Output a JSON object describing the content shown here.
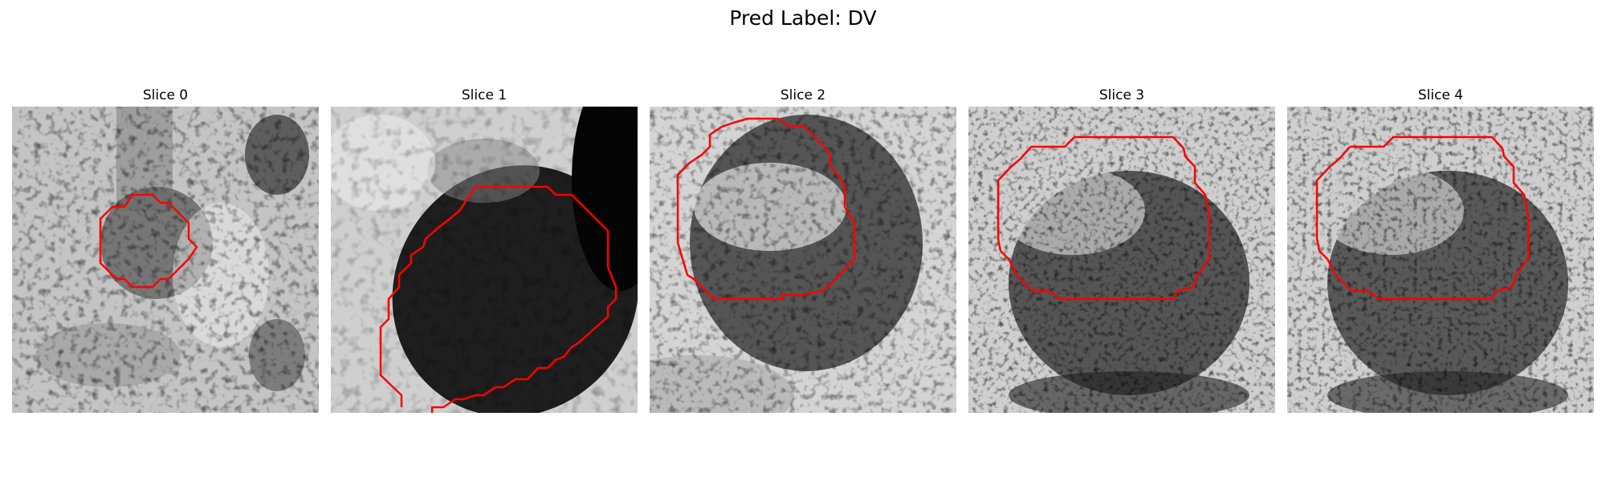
{
  "figure": {
    "title": "Pred Label: DV",
    "contour_color": "#ff0000",
    "panels": [
      {
        "title": "Slice 0"
      },
      {
        "title": "Slice 1"
      },
      {
        "title": "Slice 2"
      },
      {
        "title": "Slice 3"
      },
      {
        "title": "Slice 4"
      }
    ]
  }
}
